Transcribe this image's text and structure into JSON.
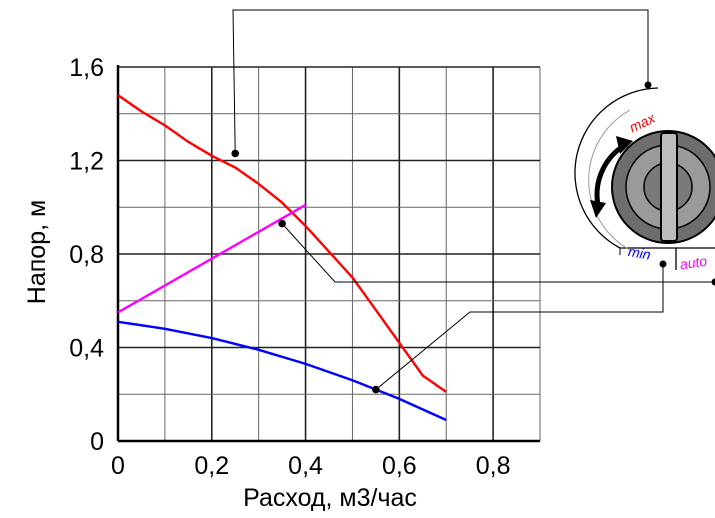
{
  "chart_data": {
    "type": "line",
    "title": "",
    "xlabel": "Расход, м3/час",
    "ylabel": "Напор, м",
    "xlim": [
      0,
      0.9
    ],
    "ylim": [
      0,
      1.6
    ],
    "x_ticks": [
      "0",
      "0,2",
      "0,4",
      "0,6",
      "0,8"
    ],
    "y_ticks": [
      "0",
      "0,4",
      "0,8",
      "1,2",
      "1,6"
    ],
    "grid": true,
    "series": [
      {
        "color": "#ff0000",
        "points": [
          [
            0,
            1.48
          ],
          [
            0.05,
            1.41
          ],
          [
            0.1,
            1.35
          ],
          [
            0.15,
            1.28
          ],
          [
            0.2,
            1.22
          ],
          [
            0.25,
            1.17
          ],
          [
            0.3,
            1.1
          ],
          [
            0.35,
            1.02
          ],
          [
            0.4,
            0.92
          ],
          [
            0.45,
            0.81
          ],
          [
            0.5,
            0.7
          ],
          [
            0.55,
            0.56
          ],
          [
            0.6,
            0.42
          ],
          [
            0.65,
            0.28
          ],
          [
            0.7,
            0.21
          ]
        ]
      },
      {
        "color": "#ff00ff",
        "points": [
          [
            0,
            0.55
          ],
          [
            0.4,
            1.01
          ]
        ]
      },
      {
        "color": "#0000ff",
        "points": [
          [
            0,
            0.51
          ],
          [
            0.1,
            0.48
          ],
          [
            0.2,
            0.44
          ],
          [
            0.3,
            0.39
          ],
          [
            0.4,
            0.33
          ],
          [
            0.5,
            0.26
          ],
          [
            0.6,
            0.18
          ],
          [
            0.7,
            0.09
          ]
        ]
      }
    ],
    "markers": [
      {
        "target": "max",
        "point": [
          0.25,
          1.23
        ]
      },
      {
        "target": "auto",
        "point": [
          0.35,
          0.93
        ]
      },
      {
        "target": "min",
        "point": [
          0.55,
          0.22
        ]
      }
    ]
  },
  "knob": {
    "label_max": "max",
    "label_min": "min",
    "label_auto": "auto",
    "color_max": "#ff0000",
    "color_min": "#0000ff",
    "color_auto": "#ff00ff"
  }
}
